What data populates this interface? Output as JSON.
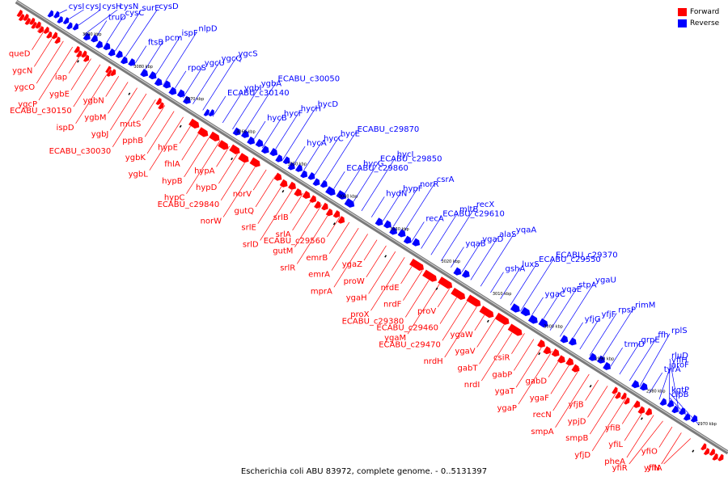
{
  "legend": {
    "forward_label": "Forward",
    "reverse_label": "Reverse",
    "forward_color": "#ff0000",
    "reverse_color": "#0000ff"
  },
  "caption": "Escherichia coli ABU 83972, complete genome. - 0..5131397",
  "axis_ticks": [
    "3090 kbp",
    "3080 kbp",
    "3070 kbp",
    "3060 kbp",
    "3050 kbp",
    "3040 kbp",
    "3030 kbp",
    "3020 kbp",
    "3010 kbp",
    "3000 kbp",
    "2990 kbp",
    "2980 kbp",
    "2970 kbp"
  ],
  "reverse_genes": [
    "cysI",
    "cysJ",
    "cysH",
    "cysN",
    "truD",
    "cysC",
    "surE",
    "cysD",
    "ftsB",
    "pcm",
    "ispF",
    "nlpD",
    "rpoS",
    "ygcU",
    "ygcQ",
    "ygcS",
    "ECABU_c30140",
    "ygbI",
    "ygbA",
    "ECABU_c30050",
    "hycB",
    "hycF",
    "hycH",
    "hycD",
    "hycA",
    "hycC",
    "hycE",
    "ECABU_c29870",
    "ECABU_c29860",
    "hycG",
    "ECABU_c29850",
    "hycI",
    "hydN",
    "hypF",
    "norR",
    "csrA",
    "recA",
    "ECABU_c29610",
    "mltB",
    "recX",
    "yqaB",
    "ygaD",
    "alaS",
    "yqaA",
    "gshA",
    "luxS",
    "ECABU_c29550",
    "ECABU_c29370",
    "ygaC",
    "yqaE",
    "stpA",
    "ygaU",
    "yfjG",
    "yfjF",
    "rpsP",
    "rimM",
    "trmD",
    "grpE",
    "ffh",
    "rplS",
    "tyrA",
    "aroF",
    "yfiH",
    "rluD",
    "clpB",
    "kgtP"
  ],
  "forward_genes": [
    "queD",
    "ygcN",
    "ygcO",
    "ygcP",
    "iap",
    "ygbE",
    "ECABU_c30150",
    "ispD",
    "ygbN",
    "ygbM",
    "ygbJ",
    "ECABU_c30030",
    "mutS",
    "pphB",
    "ygbK",
    "ygbL",
    "hypE",
    "fhlA",
    "hypB",
    "hypC",
    "hypA",
    "hypD",
    "ECABU_c29840",
    "norW",
    "norV",
    "gutQ",
    "srlE",
    "srlD",
    "srlB",
    "srlA",
    "gutM",
    "srlR",
    "ECABU_c29560",
    "emrB",
    "emrA",
    "mprA",
    "ygaZ",
    "proW",
    "ygaH",
    "proX",
    "nrdE",
    "nrdF",
    "ECABU_c29380",
    "ygaM",
    "proV",
    "ECABU_c29460",
    "ECABU_c29470",
    "nrdH",
    "ygaW",
    "ygaV",
    "gabT",
    "nrdI",
    "csiR",
    "gabP",
    "ygaT",
    "ygaP",
    "gabD",
    "ygaF",
    "recN",
    "smpA",
    "yfjB",
    "ypjD",
    "smpB",
    "yfjD",
    "yfiB",
    "yfiL",
    "pheA",
    "yfiR",
    "yfiO",
    "yfiN",
    "yfiA"
  ]
}
